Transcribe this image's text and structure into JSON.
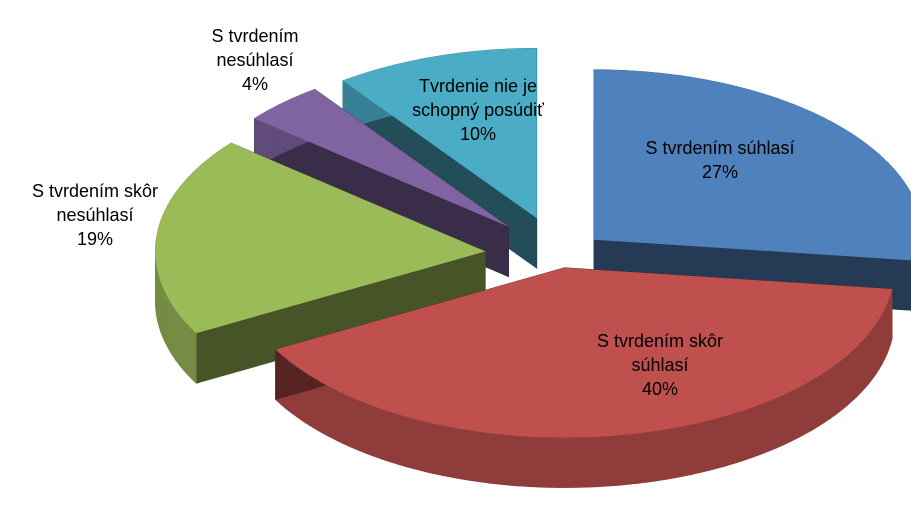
{
  "chart_data": {
    "type": "pie",
    "categories": [
      "S tvrdením súhlasí",
      "S tvrdením skôr súhlasí",
      "S tvrdením skôr nesúhlasí",
      "S tvrdením nesúhlasí",
      "Tvrdenie nie je schopný posúdiť"
    ],
    "values": [
      27,
      40,
      19,
      4,
      10
    ],
    "value_labels": [
      "27%",
      "40%",
      "19%",
      "4%",
      "10%"
    ],
    "colors": [
      "#4f81bd",
      "#c0504d",
      "#9bbb59",
      "#8064a2",
      "#4bacc6"
    ]
  }
}
